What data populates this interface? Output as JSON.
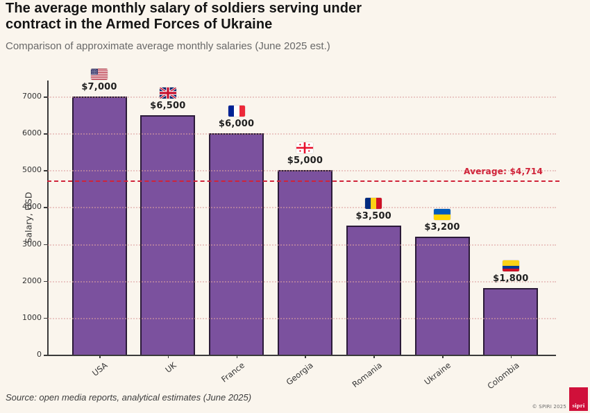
{
  "header": {
    "title": "The average monthly salary of soldiers serving under\ncontract in the Armed Forces of Ukraine",
    "subtitle": "Comparison of approximate average monthly salaries (June 2025 est.)"
  },
  "chart_data": {
    "type": "bar",
    "categories": [
      "USA",
      "UK",
      "France",
      "Georgia",
      "Romania",
      "Ukraine",
      "Colombia"
    ],
    "values": [
      7000,
      6500,
      6000,
      5000,
      3500,
      3200,
      1800
    ],
    "value_labels": [
      "$7,000",
      "$6,500",
      "$6,000",
      "$5,000",
      "$3,500",
      "$3,200",
      "$1,800"
    ],
    "flag_icons": [
      "usa-flag-icon",
      "uk-flag-icon",
      "france-flag-icon",
      "georgia-flag-icon",
      "romania-flag-icon",
      "ukraine-flag-icon",
      "colombia-flag-icon"
    ],
    "ylabel": "Salary, USD",
    "yticks": [
      0,
      1000,
      2000,
      3000,
      4000,
      5000,
      6000,
      7000
    ],
    "ylim": [
      0,
      7400
    ],
    "grid": true,
    "legend": "none",
    "average_line": {
      "value": 4714,
      "label": "Average: $4,714",
      "style": "dashed"
    },
    "colors": {
      "bar_fill": "#7b519e",
      "bar_border": "#2b1a38",
      "average_red": "#d02339",
      "grid_dots": "#ddA0a0",
      "axis": "#3a3a3a",
      "background": "#faf5ed"
    }
  },
  "footer": {
    "source": "Source: open media reports, analytical estimates (June 2025)",
    "copyright": "© SPIRI 2025",
    "logo_text": "sipri"
  }
}
